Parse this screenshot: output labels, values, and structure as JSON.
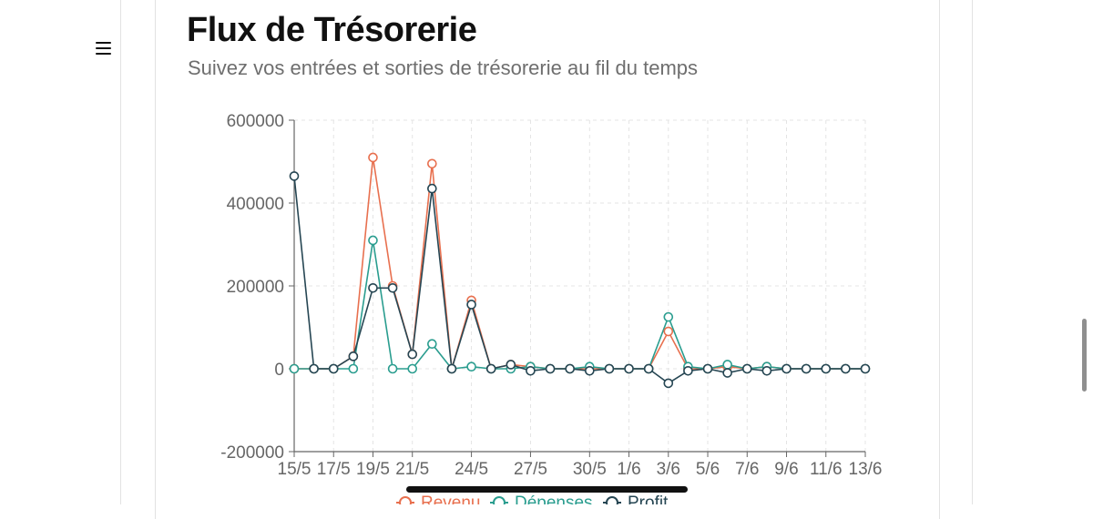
{
  "header": {
    "title": "Flux de Trésorerie",
    "subtitle": "Suivez vos entrées et sorties de trésorerie au fil du temps"
  },
  "menu": {
    "icon": "hamburger-menu-icon"
  },
  "chart_data": {
    "type": "line",
    "title": "",
    "xlabel": "",
    "ylabel": "",
    "ylim": [
      -200000,
      600000
    ],
    "yticks": [
      600000,
      400000,
      200000,
      0,
      -200000
    ],
    "grid": true,
    "x": [
      "15/5",
      "16/5",
      "17/5",
      "18/5",
      "19/5",
      "20/5",
      "21/5",
      "22/5",
      "23/5",
      "24/5",
      "25/5",
      "26/5",
      "27/5",
      "28/5",
      "29/5",
      "30/5",
      "31/5",
      "1/6",
      "2/6",
      "3/6",
      "4/6",
      "5/6",
      "6/6",
      "7/6",
      "8/6",
      "9/6",
      "10/6",
      "11/6",
      "12/6",
      "13/6"
    ],
    "xtick_labels": [
      "15/5",
      "17/5",
      "19/5",
      "21/5",
      "24/5",
      "27/5",
      "30/5",
      "1/6",
      "3/6",
      "5/6",
      "7/6",
      "9/6",
      "11/6",
      "13/6"
    ],
    "series": [
      {
        "name": "Revenu",
        "color": "#e8704f",
        "values": [
          0,
          0,
          0,
          30000,
          510000,
          200000,
          35000,
          495000,
          0,
          165000,
          0,
          10000,
          5000,
          0,
          0,
          0,
          0,
          0,
          0,
          90000,
          0,
          0,
          5000,
          0,
          5000,
          0,
          0,
          0,
          0,
          0
        ]
      },
      {
        "name": "Dépenses",
        "color": "#2a9d8f",
        "values": [
          0,
          0,
          0,
          0,
          310000,
          0,
          0,
          60000,
          0,
          5000,
          0,
          0,
          5000,
          0,
          0,
          5000,
          0,
          0,
          0,
          125000,
          5000,
          0,
          10000,
          0,
          5000,
          0,
          0,
          0,
          0,
          0
        ]
      },
      {
        "name": "Profit",
        "color": "#264653",
        "values": [
          465000,
          0,
          0,
          30000,
          195000,
          195000,
          35000,
          435000,
          0,
          155000,
          0,
          10000,
          -5000,
          0,
          0,
          -5000,
          0,
          0,
          0,
          -35000,
          -5000,
          0,
          -10000,
          0,
          -5000,
          0,
          0,
          0,
          0,
          0
        ]
      }
    ],
    "legend_position": "bottom"
  }
}
